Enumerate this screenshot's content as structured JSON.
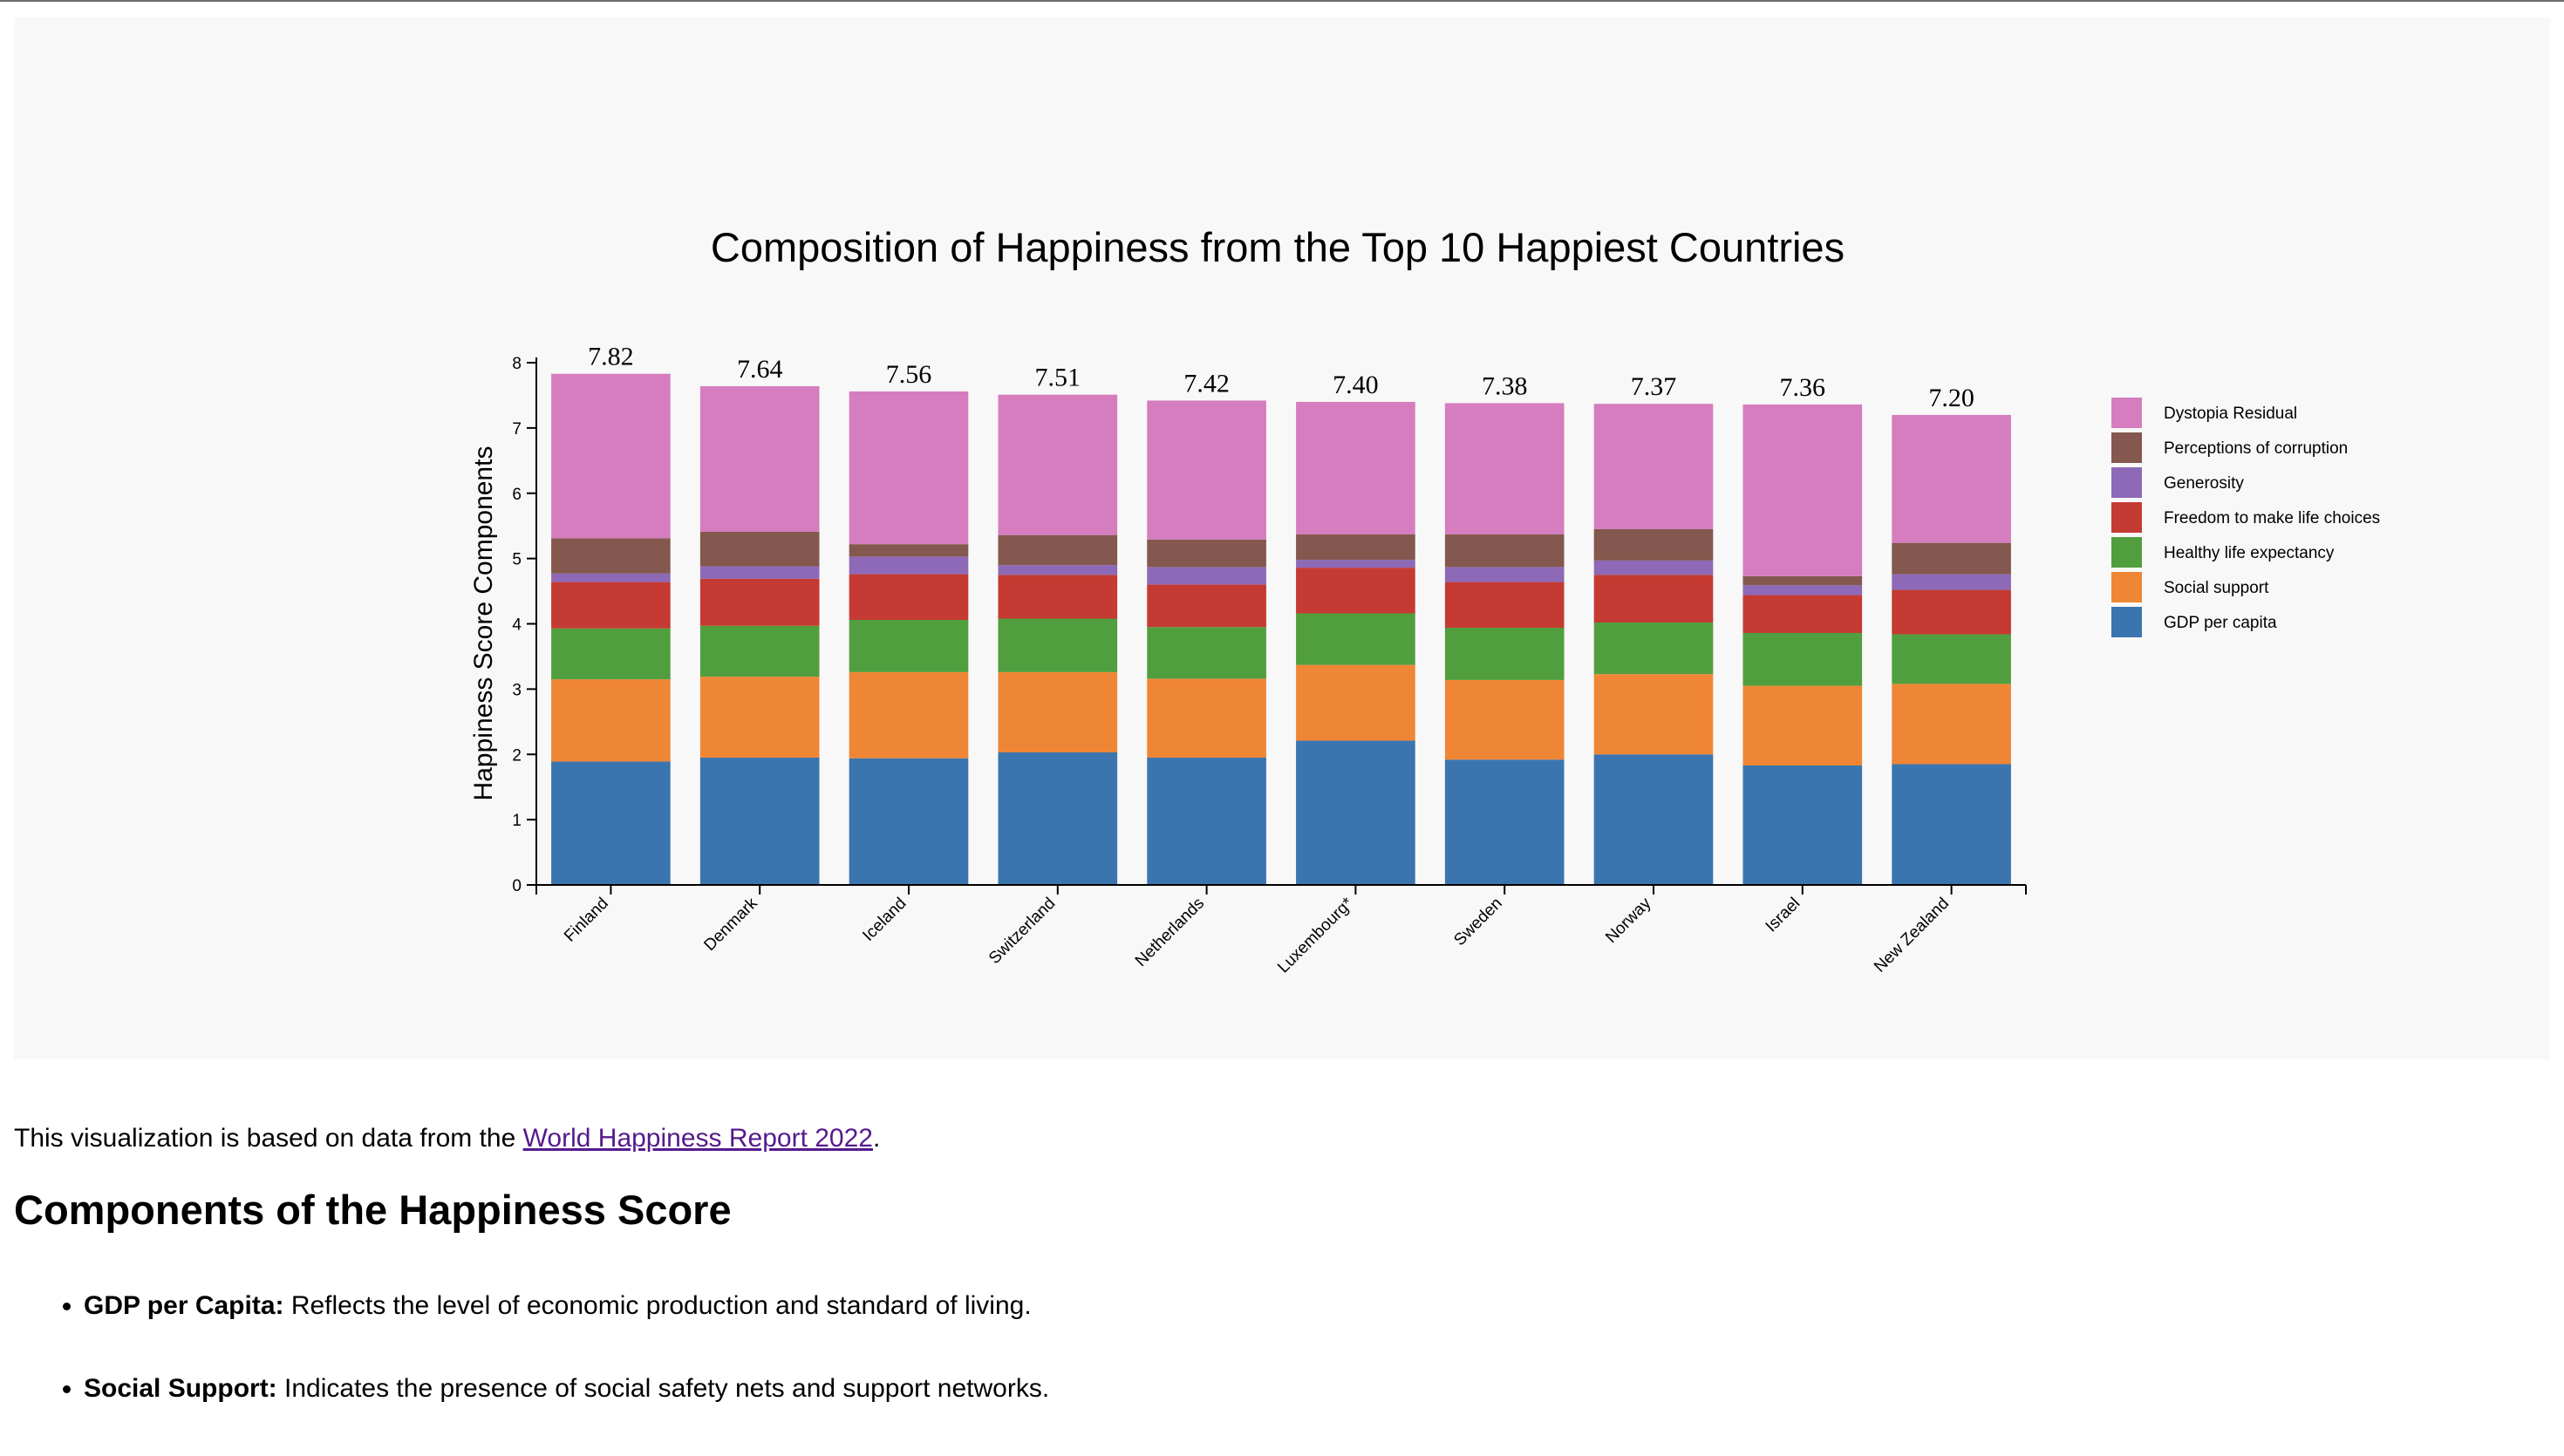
{
  "chart_data": {
    "type": "bar",
    "stacked": true,
    "title": "Composition of Happiness from the Top 10 Happiest Countries",
    "ylabel": "Happiness Score Components",
    "xlabel": "",
    "ylim": [
      0,
      8
    ],
    "yticks": [
      "0",
      "1",
      "2",
      "3",
      "4",
      "5",
      "6",
      "7",
      "8"
    ],
    "grid": false,
    "legend_position": "right",
    "categories": [
      "Finland",
      "Denmark",
      "Iceland",
      "Switzerland",
      "Netherlands",
      "Luxembourg*",
      "Sweden",
      "Norway",
      "Israel",
      "New Zealand"
    ],
    "totals": [
      "7.82",
      "7.64",
      "7.56",
      "7.51",
      "7.42",
      "7.40",
      "7.38",
      "7.37",
      "7.36",
      "7.20"
    ],
    "series": [
      {
        "name": "GDP per capita",
        "color": "#3b75af",
        "values": [
          1.89,
          1.95,
          1.94,
          2.03,
          1.95,
          2.21,
          1.92,
          2.0,
          1.83,
          1.85
        ]
      },
      {
        "name": "Social support",
        "color": "#ef8636",
        "values": [
          1.26,
          1.24,
          1.32,
          1.23,
          1.21,
          1.16,
          1.22,
          1.23,
          1.22,
          1.23
        ]
      },
      {
        "name": "Healthy life expectancy",
        "color": "#519e3e",
        "values": [
          0.78,
          0.78,
          0.8,
          0.82,
          0.79,
          0.79,
          0.8,
          0.79,
          0.81,
          0.76
        ]
      },
      {
        "name": "Freedom to make life choices",
        "color": "#c53a32",
        "values": [
          0.71,
          0.72,
          0.7,
          0.67,
          0.65,
          0.7,
          0.7,
          0.73,
          0.58,
          0.68
        ]
      },
      {
        "name": "Generosity",
        "color": "#8d69b8",
        "values": [
          0.13,
          0.19,
          0.27,
          0.15,
          0.27,
          0.12,
          0.23,
          0.22,
          0.15,
          0.24
        ]
      },
      {
        "name": "Perceptions of corruption",
        "color": "#84584e",
        "values": [
          0.54,
          0.53,
          0.19,
          0.46,
          0.42,
          0.39,
          0.5,
          0.48,
          0.14,
          0.48
        ]
      },
      {
        "name": "Dystopia Residual",
        "color": "#d57dbf",
        "values": [
          2.52,
          2.23,
          2.34,
          2.15,
          2.13,
          2.03,
          2.01,
          1.92,
          2.63,
          1.96
        ]
      }
    ]
  },
  "source": {
    "prefix": "This visualization is based on data from the ",
    "link_text": "World Happiness Report 2022",
    "suffix": "."
  },
  "components": {
    "heading": "Components of the Happiness Score",
    "items": [
      {
        "term": "GDP per Capita:",
        "description": " Reflects the level of economic production and standard of living."
      },
      {
        "term": "Social Support:",
        "description": " Indicates the presence of social safety nets and support networks."
      }
    ]
  }
}
